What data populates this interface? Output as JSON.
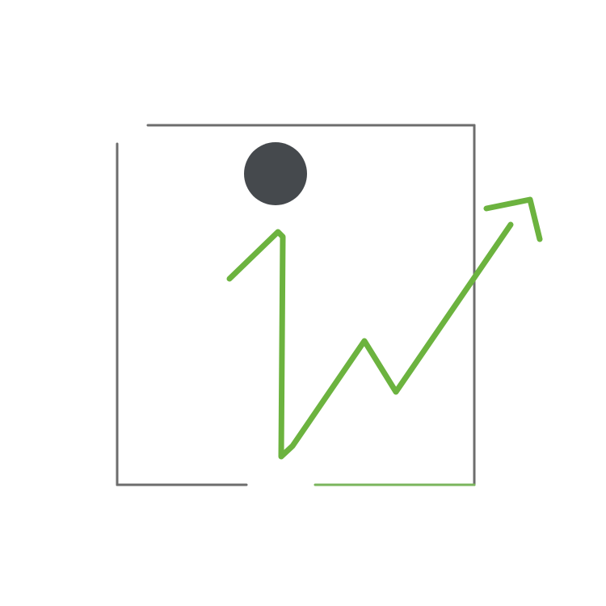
{
  "logo": {
    "icon": "stylized-i-with-rising-trend-arrow",
    "colors": {
      "background": "#ffffff",
      "frame_stroke_dark": "#6d6d6d",
      "frame_stroke_green": "#7ab55c",
      "dot": "#45494d",
      "trend_line": "#6cb33f"
    }
  }
}
